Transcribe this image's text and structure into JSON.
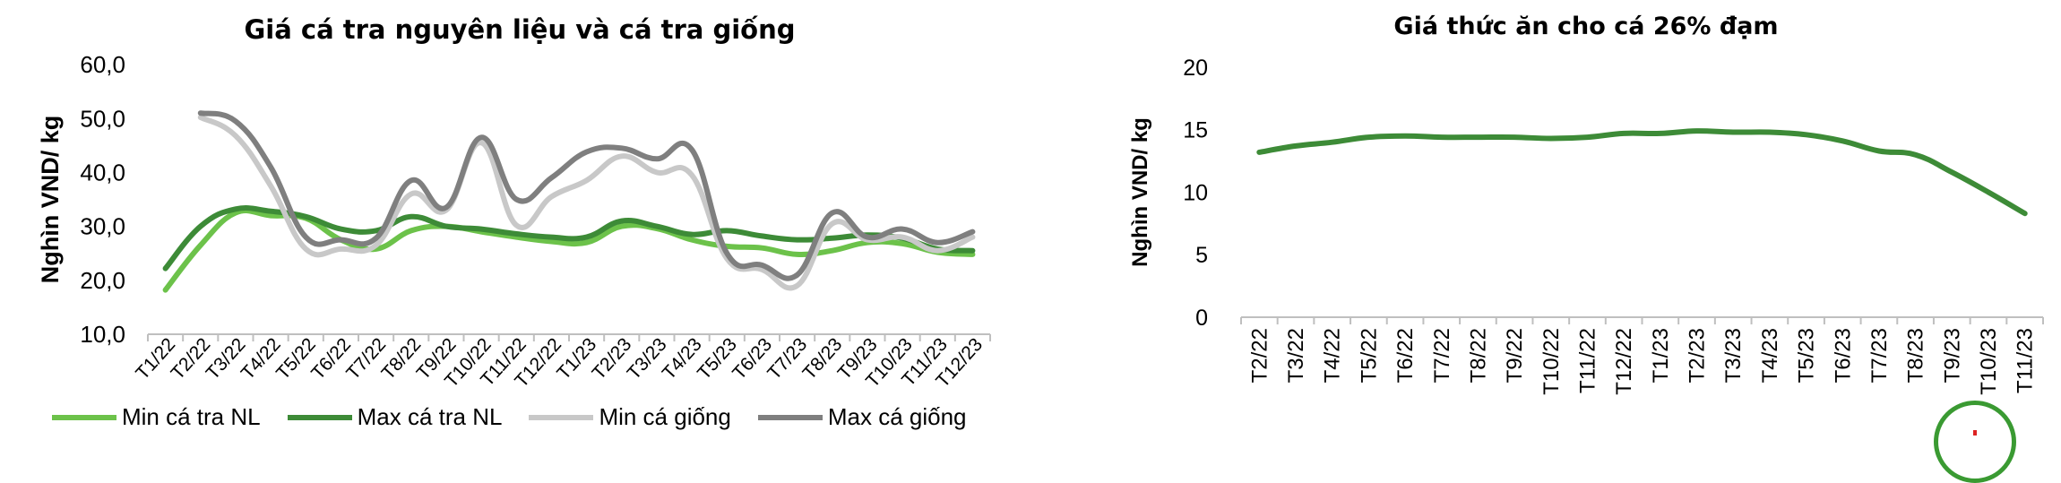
{
  "chart_data": [
    {
      "type": "line",
      "title": "Giá cá tra nguyên liệu và cá tra giống",
      "xlabel": "",
      "ylabel": "Nghìn VND/ kg",
      "ylim": [
        10,
        60
      ],
      "yticks": [
        "10,0",
        "20,0",
        "30,0",
        "40,0",
        "50,0",
        "60,0"
      ],
      "categories": [
        "T1/22",
        "T2/22",
        "T3/22",
        "T4/22",
        "T5/22",
        "T6/22",
        "T7/22",
        "T8/22",
        "T9/22",
        "T10/22",
        "T11/22",
        "T12/22",
        "T1/23",
        "T2/23",
        "T3/23",
        "T4/23",
        "T5/23",
        "T6/23",
        "T7/23",
        "T8/23",
        "T9/23",
        "T10/23",
        "T11/23",
        "T12/23"
      ],
      "grid": false,
      "legend_position": "bottom",
      "series": [
        {
          "name": "Min cá tra NL",
          "color": "#6cc24a",
          "values": [
            18.2,
            26.5,
            32.5,
            32.0,
            31.5,
            27.5,
            25.8,
            29.2,
            30.0,
            29.0,
            28.0,
            27.2,
            27.0,
            30.0,
            29.6,
            27.5,
            26.3,
            26.0,
            24.8,
            25.5,
            27.0,
            26.8,
            25.2,
            24.8
          ]
        },
        {
          "name": "Max cá tra NL",
          "color": "#3d8b37",
          "values": [
            22.2,
            30.0,
            33.2,
            32.8,
            31.8,
            29.5,
            29.2,
            31.8,
            30.0,
            29.5,
            28.6,
            28.0,
            28.0,
            31.0,
            30.0,
            28.5,
            29.2,
            28.2,
            27.5,
            27.8,
            28.4,
            27.8,
            25.8,
            25.5
          ]
        },
        {
          "name": "Min cá giống",
          "color": "#c8c8c8",
          "values": [
            null,
            50.2,
            46.8,
            37.5,
            25.8,
            25.8,
            26.5,
            36.0,
            33.0,
            45.5,
            30.2,
            35.5,
            38.5,
            43.0,
            40.0,
            39.5,
            24.0,
            22.0,
            19.0,
            30.5,
            27.5,
            28.0,
            25.5,
            28.0
          ]
        },
        {
          "name": "Max cá giống",
          "color": "#7f7f7f",
          "values": [
            null,
            51.0,
            49.5,
            41.0,
            28.0,
            27.5,
            27.8,
            38.5,
            33.5,
            46.5,
            35.0,
            39.0,
            43.8,
            44.5,
            42.5,
            44.2,
            25.0,
            22.8,
            21.0,
            32.5,
            28.0,
            29.5,
            27.0,
            29.0
          ]
        }
      ]
    },
    {
      "type": "line",
      "title": "Giá thức ăn cho cá 26% đạm",
      "xlabel": "",
      "ylabel": "Nghìn VND/ kg",
      "ylim": [
        0,
        20
      ],
      "yticks": [
        "0",
        "5",
        "10",
        "15",
        "20"
      ],
      "categories": [
        "T2/22",
        "T3/22",
        "T4/22",
        "T5/22",
        "T6/22",
        "T7/22",
        "T8/22",
        "T9/22",
        "T10/22",
        "T11/22",
        "T12/22",
        "T1/23",
        "T2/23",
        "T3/23",
        "T4/23",
        "T5/23",
        "T6/23",
        "T7/23",
        "T8/23",
        "T9/23",
        "T10/23",
        "T11/23"
      ],
      "grid": false,
      "legend_position": "none",
      "series": [
        {
          "color": "#3d8b37",
          "values": [
            13.2,
            13.7,
            14.0,
            14.4,
            14.5,
            14.4,
            14.4,
            14.4,
            14.3,
            14.4,
            14.7,
            14.7,
            14.9,
            14.8,
            14.8,
            14.6,
            14.1,
            13.3,
            13.0,
            11.6,
            10.0,
            8.3
          ]
        }
      ]
    }
  ]
}
